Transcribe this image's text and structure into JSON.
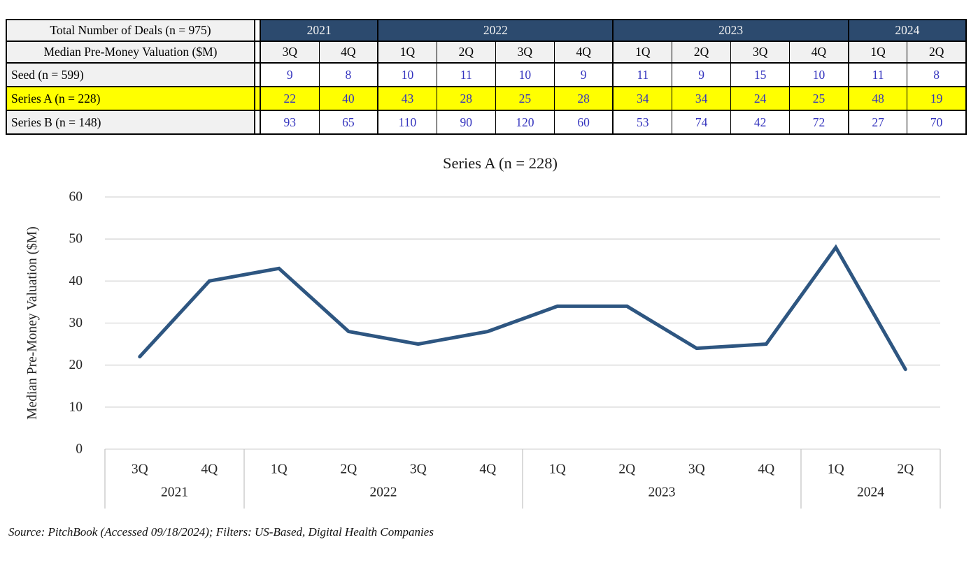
{
  "table": {
    "header_row1_label": "Total Number of Deals (n = 975)",
    "header_row2_label": "Median Pre-Money Valuation ($M)",
    "year_groups": [
      {
        "label": "2021",
        "span": 2
      },
      {
        "label": "2022",
        "span": 4
      },
      {
        "label": "2023",
        "span": 4
      },
      {
        "label": "2024",
        "span": 2
      }
    ],
    "quarter_headers": [
      "3Q",
      "4Q",
      "1Q",
      "2Q",
      "3Q",
      "4Q",
      "1Q",
      "2Q",
      "3Q",
      "4Q",
      "1Q",
      "2Q"
    ],
    "rows": [
      {
        "label": "Seed (n = 599)",
        "highlight": false,
        "values": [
          "9",
          "8",
          "10",
          "11",
          "10",
          "9",
          "11",
          "9",
          "15",
          "10",
          "11",
          "8"
        ]
      },
      {
        "label": "Series A (n = 228)",
        "highlight": true,
        "values": [
          "22",
          "40",
          "43",
          "28",
          "25",
          "28",
          "34",
          "34",
          "24",
          "25",
          "48",
          "19"
        ]
      },
      {
        "label": "Series B (n = 148)",
        "highlight": false,
        "values": [
          "93",
          "65",
          "110",
          "90",
          "120",
          "60",
          "53",
          "74",
          "42",
          "72",
          "27",
          "70"
        ]
      }
    ]
  },
  "chart_data": {
    "type": "line",
    "title": "Series A (n = 228)",
    "xlabel": "",
    "ylabel": "Median Pre-Money Valuation ($M)",
    "ylim": [
      0,
      60
    ],
    "yticks": [
      0,
      10,
      20,
      30,
      40,
      50,
      60
    ],
    "grid": true,
    "legend_position": "none",
    "categories_quarters": [
      "3Q",
      "4Q",
      "1Q",
      "2Q",
      "3Q",
      "4Q",
      "1Q",
      "2Q",
      "3Q",
      "4Q",
      "1Q",
      "2Q"
    ],
    "year_groups": [
      {
        "label": "2021",
        "span": 2
      },
      {
        "label": "2022",
        "span": 4
      },
      {
        "label": "2023",
        "span": 4
      },
      {
        "label": "2024",
        "span": 2
      }
    ],
    "series": [
      {
        "name": "Series A (n = 228)",
        "values": [
          22,
          40,
          43,
          28,
          25,
          28,
          34,
          34,
          24,
          25,
          48,
          19
        ]
      }
    ]
  },
  "footer": {
    "source_note": "Source: PitchBook (Accessed 09/18/2024); Filters: US-Based, Digital Health Companies"
  },
  "colors": {
    "header_navy": "#2C4A6E",
    "header_text": "#F2F2F2",
    "highlight_yellow": "#FFFF00",
    "value_blue": "#3434BE",
    "label_gray_bg": "#F1F1F1",
    "line": "#2E5681",
    "gridline": "#D6D6D6",
    "axis_line": "#C6C6C6"
  }
}
